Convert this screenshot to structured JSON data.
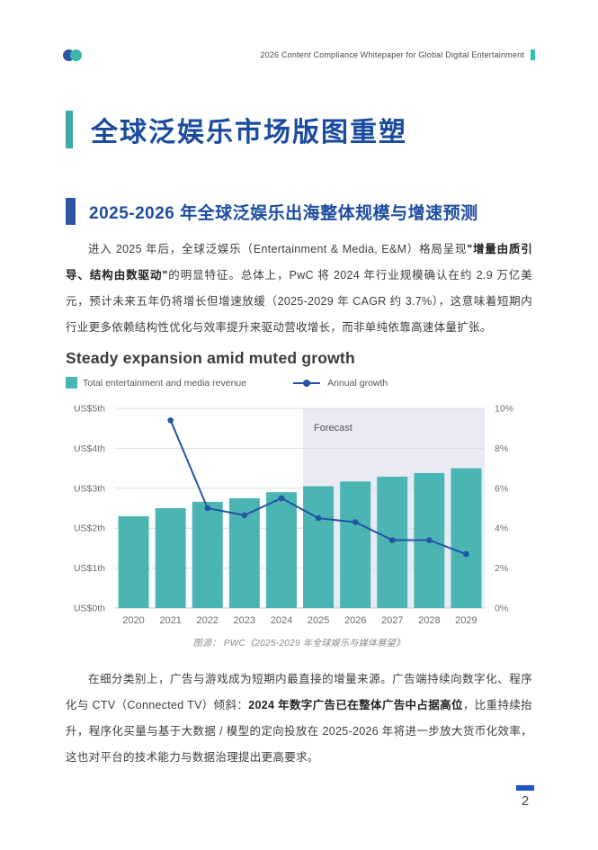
{
  "header": {
    "title": "2026 Content Compliance Whitepaper for Global Digital Entertainment",
    "logo_icon": "two-overlapping-circles",
    "accent_color": "#2fbfae"
  },
  "page_title": "全球泛娱乐市场版图重塑",
  "section": {
    "heading": "2025-2026 年全球泛娱乐出海整体规模与增速预测"
  },
  "para1": {
    "pre": "进入 2025 年后，全球泛娱乐（Entertainment & Media, E&M）格局呈现",
    "bold": "\"增量由质引导、结构由数驱动\"",
    "post": "的明显特征。总体上，PwC 将 2024 年行业规模确认在约 2.9 万亿美元，预计未来五年仍将增长但增速放缓（2025-2029 年 CAGR 约 3.7%），这意味着短期内行业更多依赖结构性优化与效率提升来驱动营收增长，而非单纯依靠高速体量扩张。"
  },
  "chart_data": {
    "type": "bar",
    "title": "Steady expansion amid muted growth",
    "categories": [
      "2020",
      "2021",
      "2022",
      "2023",
      "2024",
      "2025",
      "2026",
      "2027",
      "2028",
      "2029"
    ],
    "series": [
      {
        "name": "Total entertainment and media revenue",
        "kind": "bar",
        "axis": "left",
        "values": [
          2.3,
          2.5,
          2.66,
          2.75,
          2.9,
          3.05,
          3.17,
          3.29,
          3.38,
          3.5
        ]
      },
      {
        "name": "Annual growth",
        "kind": "line",
        "axis": "right",
        "values": [
          null,
          9.4,
          5.0,
          4.65,
          5.5,
          4.5,
          4.3,
          3.4,
          3.4,
          2.7
        ]
      }
    ],
    "left_axis": {
      "ticks": [
        "US$0th",
        "US$1th",
        "US$2th",
        "US$3th",
        "US$4th",
        "US$5th"
      ],
      "range": [
        0,
        5
      ]
    },
    "right_axis": {
      "ticks": [
        "0%",
        "2%",
        "4%",
        "6%",
        "8%",
        "10%"
      ],
      "range": [
        0,
        10
      ]
    },
    "forecast": {
      "label": "Forecast",
      "start_category": "2025"
    },
    "legend_position": "top",
    "grid": true,
    "colors": {
      "bar": "#4ab5b2",
      "line": "#2454a4",
      "forecast_bg": "#e9eaf4",
      "grid": "#dcdcdc",
      "axis_text": "#6e6e6e"
    }
  },
  "caption": {
    "text": "图源：  PWC《2025-2029 年全球娱乐与媒体展望》"
  },
  "para2": {
    "pre": "在细分类别上，广告与游戏成为短期内最直接的增量来源。广告端持续向数字化、程序化与 CTV（Connected TV）倾斜：",
    "bold": "2024 年数字广告已在整体广告中占据高位",
    "post": "，比重持续抬升，程序化买量与基于大数据 / 模型的定向投放在 2025-2026 年将进一步放大货币化效率，这也对平台的技术能力与数据治理提出更高要求。"
  },
  "footer": {
    "page_number": "2"
  }
}
